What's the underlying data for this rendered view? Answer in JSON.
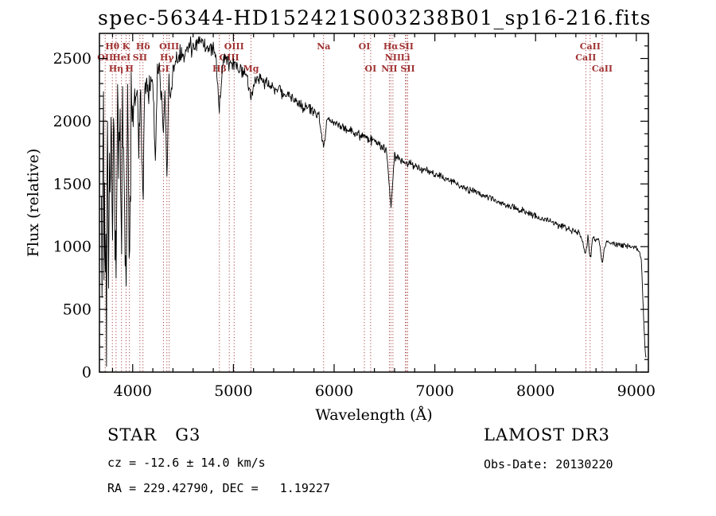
{
  "title": "spec-56344-HD152421S003238B01_sp16-216.fits",
  "annotations": {
    "class_label": "STAR   G3",
    "survey": "LAMOST DR3",
    "cz": "cz = -12.6 ± 14.0 km/s",
    "obs_date": "Obs-Date: 20130220",
    "coords": "RA = 229.42790, DEC =   1.19227"
  },
  "chart_data": {
    "type": "line",
    "title": "spec-56344-HD152421S003238B01_sp16-216.fits",
    "xlabel": "Wavelength (Å)",
    "ylabel": "Flux (relative)",
    "xlim": [
      3670,
      9120
    ],
    "ylim": [
      0,
      2700
    ],
    "x_ticks": [
      4000,
      5000,
      6000,
      7000,
      8000,
      9000
    ],
    "x_minor_step": 200,
    "y_ticks": [
      0,
      500,
      1000,
      1500,
      2000,
      2500
    ],
    "y_minor_step": 100,
    "grid": false,
    "line_color": "#000000",
    "axis_color": "#000000",
    "marker_color": "#a03232",
    "background": "#ffffff",
    "spectral_lines": [
      {
        "label": "OII",
        "wavelength": 3727,
        "row": 2
      },
      {
        "label": "Hθ",
        "wavelength": 3798,
        "row": 1
      },
      {
        "label": "Hη",
        "wavelength": 3835,
        "row": 3
      },
      {
        "label": "HeI",
        "wavelength": 3889,
        "row": 2
      },
      {
        "label": "K",
        "wavelength": 3934,
        "row": 1
      },
      {
        "label": "H",
        "wavelength": 3968,
        "row": 3
      },
      {
        "label": "SII",
        "wavelength": 4072,
        "row": 2
      },
      {
        "label": "Hδ",
        "wavelength": 4102,
        "row": 1
      },
      {
        "label": "GI",
        "wavelength": 4305,
        "row": 3
      },
      {
        "label": "Hγ",
        "wavelength": 4340,
        "row": 2
      },
      {
        "label": "OIII",
        "wavelength": 4363,
        "row": 1
      },
      {
        "label": "Hβ",
        "wavelength": 4861,
        "row": 3
      },
      {
        "label": "OIII",
        "wavelength": 4959,
        "row": 2
      },
      {
        "label": "OIII",
        "wavelength": 5007,
        "row": 1
      },
      {
        "label": "Mg",
        "wavelength": 5175,
        "row": 3
      },
      {
        "label": "Na",
        "wavelength": 5896,
        "row": 1
      },
      {
        "label": "OI",
        "wavelength": 6300,
        "row": 1
      },
      {
        "label": "OI",
        "wavelength": 6363,
        "row": 3
      },
      {
        "label": "NII",
        "wavelength": 6548,
        "row": 3
      },
      {
        "label": "Hα",
        "wavelength": 6563,
        "row": 1
      },
      {
        "label": "NII",
        "wavelength": 6584,
        "row": 2
      },
      {
        "label": "Li",
        "wavelength": 6708,
        "row": 2
      },
      {
        "label": "SII",
        "wavelength": 6717,
        "row": 1
      },
      {
        "label": "SII",
        "wavelength": 6731,
        "row": 3
      },
      {
        "label": "CaII",
        "wavelength": 8498,
        "row": 2
      },
      {
        "label": "CaII",
        "wavelength": 8542,
        "row": 1
      },
      {
        "label": "CaII",
        "wavelength": 8662,
        "row": 3
      }
    ],
    "spectrum": {
      "step": 5,
      "seed": 1337,
      "anchors": [
        [
          3690,
          1500
        ],
        [
          3697,
          300
        ],
        [
          3703,
          1900
        ],
        [
          3710,
          2050
        ],
        [
          3716,
          700
        ],
        [
          3722,
          1750
        ],
        [
          3728,
          400
        ],
        [
          3734,
          2000
        ],
        [
          3740,
          150
        ],
        [
          3747,
          2050
        ],
        [
          3754,
          1800
        ],
        [
          3762,
          600
        ],
        [
          3770,
          1950
        ],
        [
          3778,
          1200
        ],
        [
          3786,
          2100
        ],
        [
          3798,
          1000
        ],
        [
          3810,
          2150
        ],
        [
          3822,
          1500
        ],
        [
          3835,
          800
        ],
        [
          3848,
          2180
        ],
        [
          3862,
          1700
        ],
        [
          3875,
          2200
        ],
        [
          3889,
          900
        ],
        [
          3900,
          2250
        ],
        [
          3915,
          1700
        ],
        [
          3934,
          550
        ],
        [
          3950,
          2150
        ],
        [
          3968,
          700
        ],
        [
          3985,
          2200
        ],
        [
          4000,
          2000
        ],
        [
          4015,
          2280
        ],
        [
          4030,
          2150
        ],
        [
          4045,
          2300
        ],
        [
          4060,
          1850
        ],
        [
          4075,
          2250
        ],
        [
          4102,
          1400
        ],
        [
          4120,
          2280
        ],
        [
          4140,
          2320
        ],
        [
          4160,
          2250
        ],
        [
          4180,
          2350
        ],
        [
          4200,
          2300
        ],
        [
          4226,
          1650
        ],
        [
          4245,
          2380
        ],
        [
          4270,
          2350
        ],
        [
          4290,
          2250
        ],
        [
          4305,
          1900
        ],
        [
          4320,
          2200
        ],
        [
          4340,
          1600
        ],
        [
          4360,
          2300
        ],
        [
          4383,
          2200
        ],
        [
          4400,
          2420
        ],
        [
          4430,
          2470
        ],
        [
          4460,
          2500
        ],
        [
          4500,
          2540
        ],
        [
          4540,
          2580
        ],
        [
          4580,
          2600
        ],
        [
          4620,
          2620
        ],
        [
          4660,
          2600
        ],
        [
          4700,
          2630
        ],
        [
          4740,
          2590
        ],
        [
          4780,
          2560
        ],
        [
          4820,
          2540
        ],
        [
          4861,
          2120
        ],
        [
          4900,
          2500
        ],
        [
          4940,
          2480
        ],
        [
          4980,
          2460
        ],
        [
          5020,
          2440
        ],
        [
          5060,
          2420
        ],
        [
          5100,
          2400
        ],
        [
          5140,
          2330
        ],
        [
          5175,
          2220
        ],
        [
          5210,
          2330
        ],
        [
          5260,
          2350
        ],
        [
          5320,
          2310
        ],
        [
          5380,
          2280
        ],
        [
          5440,
          2250
        ],
        [
          5500,
          2220
        ],
        [
          5560,
          2190
        ],
        [
          5620,
          2160
        ],
        [
          5680,
          2130
        ],
        [
          5740,
          2110
        ],
        [
          5800,
          2080
        ],
        [
          5850,
          2060
        ],
        [
          5896,
          1780
        ],
        [
          5930,
          2030
        ],
        [
          5980,
          2010
        ],
        [
          6040,
          1980
        ],
        [
          6100,
          1950
        ],
        [
          6160,
          1930
        ],
        [
          6220,
          1900
        ],
        [
          6280,
          1880
        ],
        [
          6340,
          1860
        ],
        [
          6400,
          1840
        ],
        [
          6460,
          1810
        ],
        [
          6520,
          1780
        ],
        [
          6563,
          1320
        ],
        [
          6600,
          1730
        ],
        [
          6650,
          1700
        ],
        [
          6708,
          1670
        ],
        [
          6760,
          1660
        ],
        [
          6820,
          1640
        ],
        [
          6880,
          1620
        ],
        [
          6940,
          1600
        ],
        [
          7000,
          1580
        ],
        [
          7080,
          1550
        ],
        [
          7160,
          1520
        ],
        [
          7240,
          1490
        ],
        [
          7320,
          1460
        ],
        [
          7400,
          1440
        ],
        [
          7480,
          1410
        ],
        [
          7560,
          1390
        ],
        [
          7640,
          1360
        ],
        [
          7720,
          1330
        ],
        [
          7800,
          1310
        ],
        [
          7880,
          1280
        ],
        [
          7960,
          1260
        ],
        [
          8040,
          1230
        ],
        [
          8120,
          1210
        ],
        [
          8200,
          1180
        ],
        [
          8280,
          1160
        ],
        [
          8360,
          1130
        ],
        [
          8440,
          1110
        ],
        [
          8498,
          940
        ],
        [
          8520,
          1090
        ],
        [
          8542,
          880
        ],
        [
          8565,
          1070
        ],
        [
          8600,
          1060
        ],
        [
          8630,
          1050
        ],
        [
          8662,
          870
        ],
        [
          8700,
          1040
        ],
        [
          8760,
          1030
        ],
        [
          8820,
          1020
        ],
        [
          8880,
          1010
        ],
        [
          8940,
          1000
        ],
        [
          9000,
          990
        ],
        [
          9030,
          970
        ],
        [
          9050,
          900
        ],
        [
          9070,
          500
        ],
        [
          9085,
          200
        ],
        [
          9100,
          110
        ]
      ],
      "noise_profile": [
        [
          3690,
          150
        ],
        [
          3900,
          140
        ],
        [
          4000,
          90
        ],
        [
          4200,
          60
        ],
        [
          4400,
          45
        ],
        [
          4700,
          35
        ],
        [
          5000,
          28
        ],
        [
          5400,
          24
        ],
        [
          5800,
          22
        ],
        [
          6200,
          20
        ],
        [
          6600,
          18
        ],
        [
          7000,
          15
        ],
        [
          7600,
          13
        ],
        [
          8200,
          12
        ],
        [
          8700,
          13
        ],
        [
          9100,
          10
        ]
      ],
      "blue_spikes": {
        "below": 4060,
        "prob": 0.07,
        "min": 300,
        "max": 1500
      }
    }
  }
}
